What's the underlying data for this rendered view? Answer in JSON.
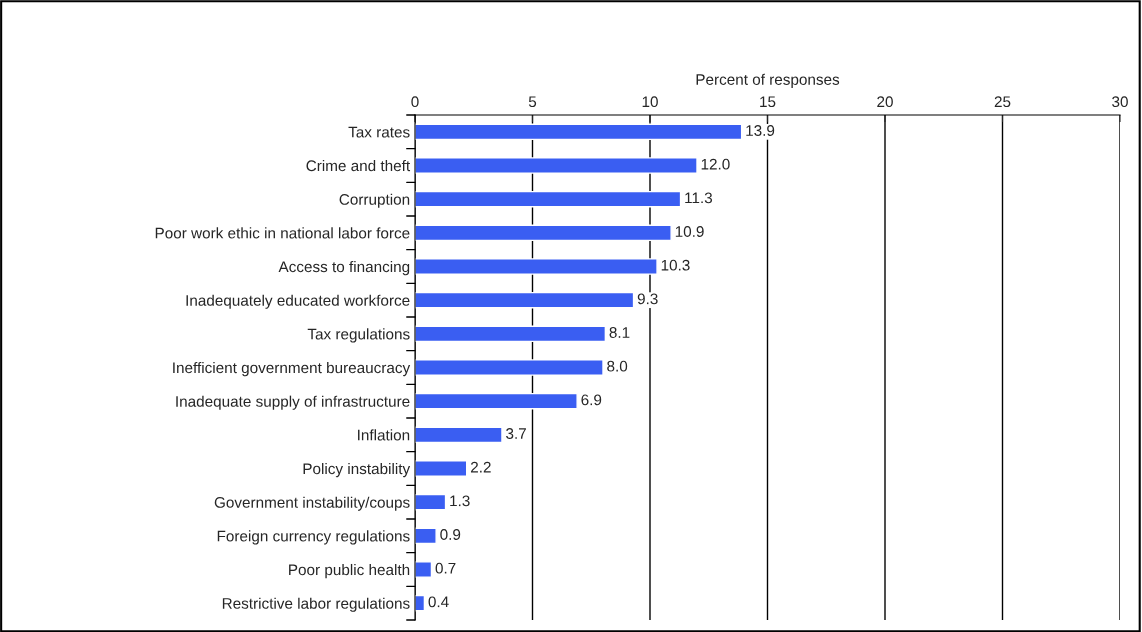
{
  "chart_data": {
    "type": "bar",
    "orientation": "horizontal",
    "xlabel": "Percent of responses",
    "categories": [
      "Tax rates",
      "Crime and theft",
      "Corruption",
      "Poor work ethic in national labor force",
      "Access to financing",
      "Inadequately educated workforce",
      "Tax regulations",
      "Inefficient government bureaucracy",
      "Inadequate supply of infrastructure",
      "Inflation",
      "Policy instability",
      "Government instability/coups",
      "Foreign currency regulations",
      "Poor public health",
      "Restrictive labor regulations"
    ],
    "values": [
      13.9,
      12.0,
      11.3,
      10.9,
      10.3,
      9.3,
      8.1,
      8.0,
      6.9,
      3.7,
      2.2,
      1.3,
      0.9,
      0.7,
      0.4
    ],
    "value_labels": [
      "13.9",
      "12.0",
      "11.3",
      "10.9",
      "10.3",
      "9.3",
      "8.1",
      "8.0",
      "6.9",
      "3.7",
      "2.2",
      "1.3",
      "0.9",
      "0.7",
      "0.4"
    ],
    "color": "#3a5ef2",
    "xlim": [
      0,
      30
    ],
    "xticks": [
      0,
      5,
      10,
      15,
      20,
      25,
      30
    ],
    "grid": "x"
  }
}
